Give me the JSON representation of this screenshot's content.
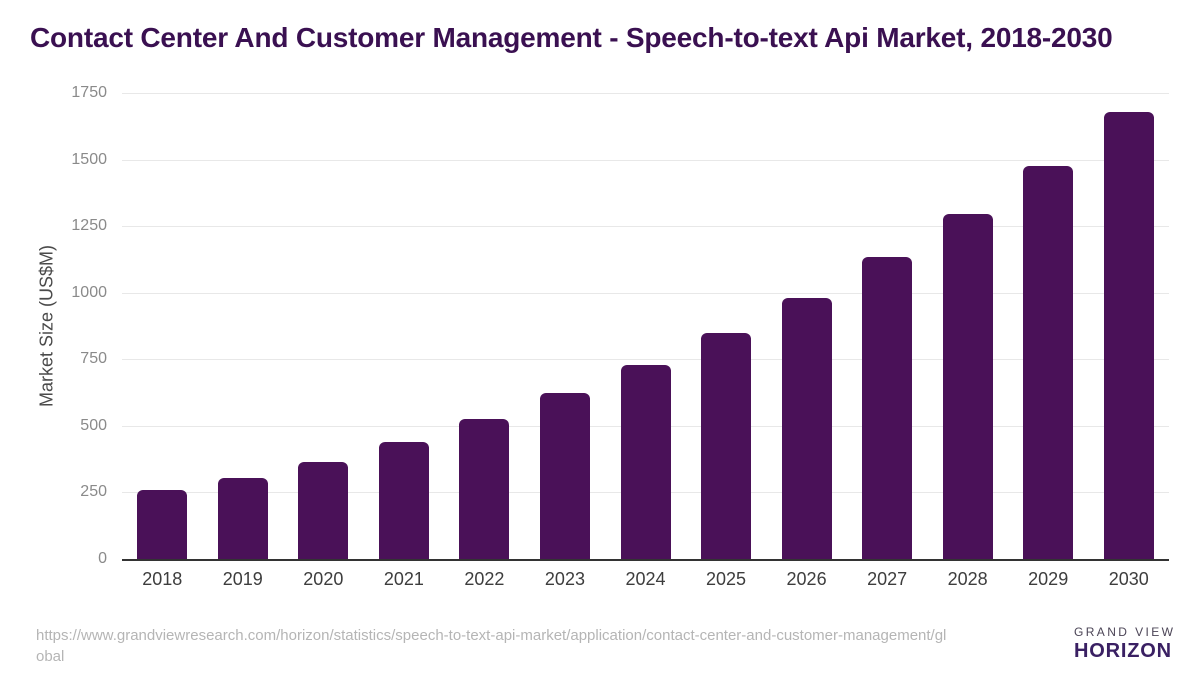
{
  "header": {
    "title": "Contact Center And Customer Management - Speech-to-text Api Market, 2018-2030"
  },
  "chart_data": {
    "type": "bar",
    "title": "Contact Center And Customer Management - Speech-to-text Api Market, 2018-2030",
    "categories": [
      "2018",
      "2019",
      "2020",
      "2021",
      "2022",
      "2023",
      "2024",
      "2025",
      "2026",
      "2027",
      "2028",
      "2029",
      "2030"
    ],
    "values": [
      260,
      305,
      365,
      440,
      525,
      625,
      730,
      850,
      980,
      1135,
      1295,
      1475,
      1680
    ],
    "xlabel": "",
    "ylabel": "Market Size (US$M)",
    "ylim": [
      0,
      1750
    ],
    "yticks": [
      0,
      250,
      500,
      750,
      1000,
      1250,
      1500,
      1750
    ],
    "grid": true,
    "legend": false,
    "bar_color": "#4a1158"
  },
  "footer": {
    "url": "https://www.grandviewresearch.com/horizon/statistics/speech-to-text-api-market/application/contact-center-and-customer-management/global",
    "logo": {
      "top_text": "GRAND VIEW",
      "bottom_text": "HORIZON"
    }
  },
  "colors": {
    "title_text": "#3a1051",
    "bar": "#4a1158",
    "axis_line": "#333333",
    "gridline": "#e8e8e8",
    "y_tick_text": "#8a8a8a",
    "x_tick_text": "#3d3d3d",
    "url_text": "#b5b5b5",
    "logo_purple": "#2e1d4e",
    "logo_blue": "#62c3ee",
    "logo_horizon_text": "#3a2063"
  }
}
